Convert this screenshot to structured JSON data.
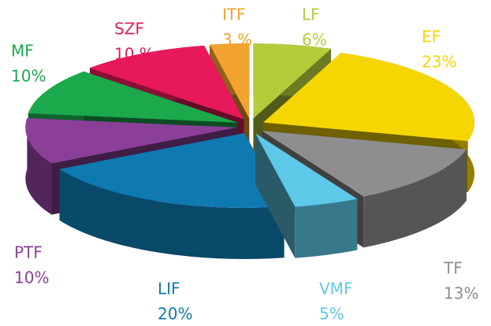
{
  "chart_data": {
    "type": "pie",
    "categories": [
      "LF",
      "EF",
      "TF",
      "VMF",
      "LIF",
      "PTF",
      "MF",
      "SZF",
      "ITF"
    ],
    "values": [
      6,
      23,
      13,
      5,
      20,
      10,
      10,
      10,
      3
    ],
    "value_labels": [
      "6%",
      "23%",
      "13%",
      "5%",
      "20%",
      "10%",
      "10%",
      "10 %",
      "3 %"
    ],
    "colors": [
      "#b3cd3a",
      "#f6d600",
      "#8e8e8e",
      "#5dc8e8",
      "#0f79b1",
      "#8b4098",
      "#1ba94c",
      "#e8195a",
      "#f2a22e"
    ]
  }
}
